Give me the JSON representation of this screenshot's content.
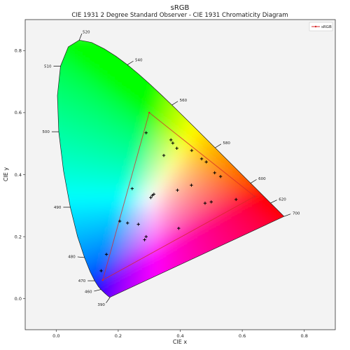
{
  "chart_data": {
    "type": "scatter",
    "title": "sRGB",
    "subtitle": "CIE 1931 2 Degree Standard Observer - CIE 1931 Chromaticity Diagram",
    "xlabel": "CIE x",
    "ylabel": "CIE y",
    "xlim": [
      -0.1,
      0.9
    ],
    "ylim": [
      -0.1,
      0.9
    ],
    "xticks": [
      0.0,
      0.2,
      0.4,
      0.6,
      0.8
    ],
    "yticks": [
      0.0,
      0.2,
      0.4,
      0.6,
      0.8
    ],
    "xtick_labels": [
      "0.0",
      "0.2",
      "0.4",
      "0.6",
      "0.8"
    ],
    "ytick_labels": [
      "0.0",
      "0.2",
      "0.4",
      "0.6",
      "0.8"
    ],
    "grid": false,
    "legend": {
      "position": "top-right",
      "entries": [
        "sRGB"
      ]
    },
    "background_color": "#f3f3f3",
    "spectral_locus": [
      {
        "wavelength": 390,
        "x": 0.1738,
        "y": 0.0049
      },
      {
        "wavelength": 420,
        "x": 0.1714,
        "y": 0.0051
      },
      {
        "wavelength": 440,
        "x": 0.1644,
        "y": 0.0109
      },
      {
        "wavelength": 450,
        "x": 0.1566,
        "y": 0.0177
      },
      {
        "wavelength": 460,
        "x": 0.144,
        "y": 0.0297
      },
      {
        "wavelength": 465,
        "x": 0.1355,
        "y": 0.0399
      },
      {
        "wavelength": 470,
        "x": 0.1241,
        "y": 0.0578
      },
      {
        "wavelength": 475,
        "x": 0.1096,
        "y": 0.0868
      },
      {
        "wavelength": 480,
        "x": 0.0913,
        "y": 0.1327
      },
      {
        "wavelength": 485,
        "x": 0.0687,
        "y": 0.2007
      },
      {
        "wavelength": 490,
        "x": 0.0454,
        "y": 0.295
      },
      {
        "wavelength": 495,
        "x": 0.0235,
        "y": 0.4127
      },
      {
        "wavelength": 500,
        "x": 0.0082,
        "y": 0.5384
      },
      {
        "wavelength": 505,
        "x": 0.0039,
        "y": 0.6548
      },
      {
        "wavelength": 510,
        "x": 0.0139,
        "y": 0.7502
      },
      {
        "wavelength": 515,
        "x": 0.0389,
        "y": 0.812
      },
      {
        "wavelength": 520,
        "x": 0.0743,
        "y": 0.8338
      },
      {
        "wavelength": 525,
        "x": 0.1142,
        "y": 0.8262
      },
      {
        "wavelength": 530,
        "x": 0.1547,
        "y": 0.8059
      },
      {
        "wavelength": 535,
        "x": 0.1929,
        "y": 0.7816
      },
      {
        "wavelength": 540,
        "x": 0.2296,
        "y": 0.7543
      },
      {
        "wavelength": 545,
        "x": 0.2658,
        "y": 0.7243
      },
      {
        "wavelength": 550,
        "x": 0.3016,
        "y": 0.6923
      },
      {
        "wavelength": 555,
        "x": 0.3373,
        "y": 0.6589
      },
      {
        "wavelength": 560,
        "x": 0.3731,
        "y": 0.6245
      },
      {
        "wavelength": 565,
        "x": 0.4087,
        "y": 0.5896
      },
      {
        "wavelength": 570,
        "x": 0.4441,
        "y": 0.5547
      },
      {
        "wavelength": 575,
        "x": 0.4788,
        "y": 0.5202
      },
      {
        "wavelength": 580,
        "x": 0.5125,
        "y": 0.4866
      },
      {
        "wavelength": 585,
        "x": 0.5448,
        "y": 0.4544
      },
      {
        "wavelength": 590,
        "x": 0.5752,
        "y": 0.4242
      },
      {
        "wavelength": 595,
        "x": 0.6029,
        "y": 0.3965
      },
      {
        "wavelength": 600,
        "x": 0.627,
        "y": 0.3725
      },
      {
        "wavelength": 610,
        "x": 0.6658,
        "y": 0.334
      },
      {
        "wavelength": 620,
        "x": 0.6915,
        "y": 0.3083
      },
      {
        "wavelength": 640,
        "x": 0.719,
        "y": 0.2809
      },
      {
        "wavelength": 660,
        "x": 0.73,
        "y": 0.27
      },
      {
        "wavelength": 700,
        "x": 0.7347,
        "y": 0.2653
      }
    ],
    "wavelength_labels": [
      {
        "label": "390",
        "wavelength": 390,
        "dir": [
          -0.7,
          -1.0
        ]
      },
      {
        "label": "460",
        "wavelength": 460,
        "dir": [
          -1.0,
          -0.25
        ]
      },
      {
        "label": "470",
        "wavelength": 470,
        "dir": [
          -1.0,
          0.0
        ]
      },
      {
        "label": "480",
        "wavelength": 480,
        "dir": [
          -1.0,
          0.1
        ]
      },
      {
        "label": "490",
        "wavelength": 490,
        "dir": [
          -1.0,
          0.0
        ]
      },
      {
        "label": "500",
        "wavelength": 500,
        "dir": [
          -1.0,
          0.0
        ]
      },
      {
        "label": "510",
        "wavelength": 510,
        "dir": [
          -1.0,
          0.0
        ]
      },
      {
        "label": "520",
        "wavelength": 520,
        "dir": [
          0.4,
          1.0
        ]
      },
      {
        "label": "540",
        "wavelength": 540,
        "dir": [
          0.8,
          0.5
        ]
      },
      {
        "label": "560",
        "wavelength": 560,
        "dir": [
          0.8,
          0.5
        ]
      },
      {
        "label": "580",
        "wavelength": 580,
        "dir": [
          0.8,
          0.5
        ]
      },
      {
        "label": "600",
        "wavelength": 600,
        "dir": [
          0.8,
          0.5
        ]
      },
      {
        "label": "620",
        "wavelength": 620,
        "dir": [
          0.8,
          0.4
        ]
      },
      {
        "label": "700",
        "wavelength": 700,
        "dir": [
          0.8,
          0.3
        ]
      }
    ],
    "gamut": {
      "name": "sRGB",
      "color": "#d62728",
      "vertices": [
        {
          "x": 0.64,
          "y": 0.33
        },
        {
          "x": 0.3,
          "y": 0.6
        },
        {
          "x": 0.15,
          "y": 0.06
        }
      ]
    },
    "points": [
      {
        "x": 0.29,
        "y": 0.535
      },
      {
        "x": 0.347,
        "y": 0.462
      },
      {
        "x": 0.37,
        "y": 0.512
      },
      {
        "x": 0.376,
        "y": 0.502
      },
      {
        "x": 0.389,
        "y": 0.485
      },
      {
        "x": 0.437,
        "y": 0.478
      },
      {
        "x": 0.469,
        "y": 0.451
      },
      {
        "x": 0.484,
        "y": 0.441
      },
      {
        "x": 0.511,
        "y": 0.406
      },
      {
        "x": 0.53,
        "y": 0.394
      },
      {
        "x": 0.48,
        "y": 0.308
      },
      {
        "x": 0.5,
        "y": 0.312
      },
      {
        "x": 0.58,
        "y": 0.32
      },
      {
        "x": 0.391,
        "y": 0.35
      },
      {
        "x": 0.436,
        "y": 0.366
      },
      {
        "x": 0.245,
        "y": 0.355
      },
      {
        "x": 0.305,
        "y": 0.326
      },
      {
        "x": 0.31,
        "y": 0.333
      },
      {
        "x": 0.315,
        "y": 0.337
      },
      {
        "x": 0.205,
        "y": 0.25
      },
      {
        "x": 0.23,
        "y": 0.244
      },
      {
        "x": 0.265,
        "y": 0.24
      },
      {
        "x": 0.395,
        "y": 0.227
      },
      {
        "x": 0.29,
        "y": 0.2
      },
      {
        "x": 0.285,
        "y": 0.19
      },
      {
        "x": 0.162,
        "y": 0.143
      },
      {
        "x": 0.145,
        "y": 0.09
      }
    ]
  }
}
